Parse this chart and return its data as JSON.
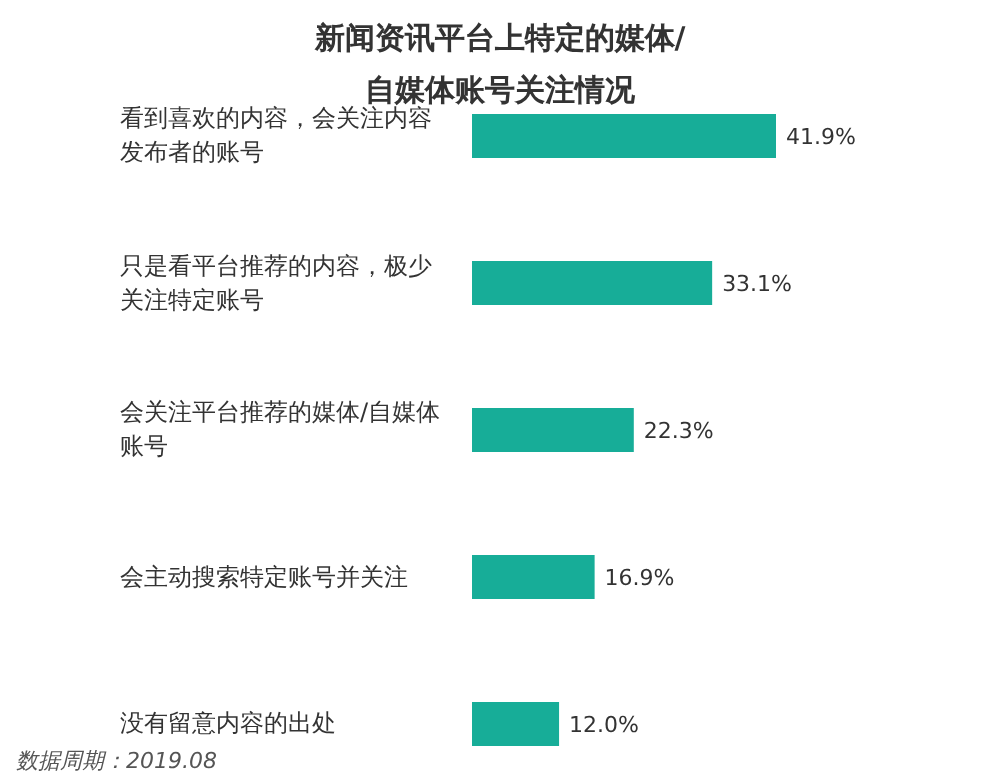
{
  "chart_data": {
    "type": "bar",
    "orientation": "horizontal",
    "title": "新闻资讯平台上特定的媒体/自媒体账号关注情况",
    "categories": [
      "看到喜欢的内容，会关注内容发布者的账号",
      "只是看平台推荐的内容，极少关注特定账号",
      "会关注平台推荐的媒体/自媒体账号",
      "会主动搜索特定账号并关注",
      "没有留意内容的出处"
    ],
    "values": [
      41.9,
      33.1,
      22.3,
      16.9,
      12.0
    ],
    "value_labels": [
      "41.9%",
      "33.1%",
      "22.3%",
      "16.9%",
      "12.0%"
    ],
    "color": "#17ad98",
    "annotations": [
      "数据周期：2019.08"
    ]
  }
}
